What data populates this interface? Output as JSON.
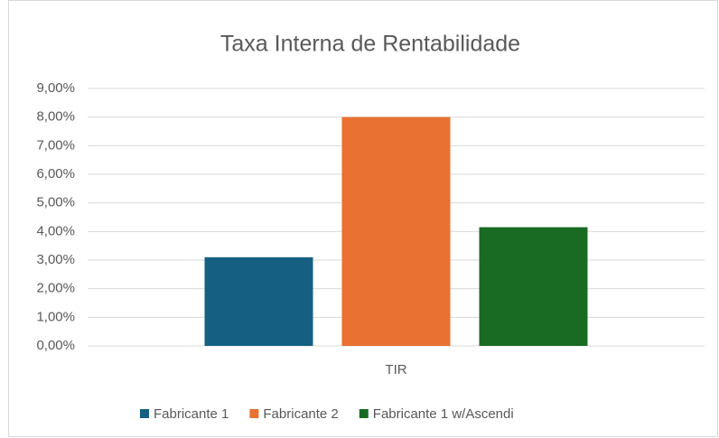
{
  "chart_data": {
    "type": "bar",
    "title": "Taxa Interna de Rentabilidade",
    "categories": [
      "TIR"
    ],
    "series": [
      {
        "name": "Fabricante 1",
        "color": "#156082",
        "values": [
          3.1
        ]
      },
      {
        "name": "Fabricante 2",
        "color": "#e97132",
        "values": [
          8.0
        ]
      },
      {
        "name": "Fabricante 1 w/Ascendi",
        "color": "#196b24",
        "values": [
          4.15
        ]
      }
    ],
    "ylim": [
      0,
      9
    ],
    "yticks": [
      {
        "value": 0,
        "label": "0,00%"
      },
      {
        "value": 1,
        "label": "1,00%"
      },
      {
        "value": 2,
        "label": "2,00%"
      },
      {
        "value": 3,
        "label": "3,00%"
      },
      {
        "value": 4,
        "label": "4,00%"
      },
      {
        "value": 5,
        "label": "5,00%"
      },
      {
        "value": 6,
        "label": "6,00%"
      },
      {
        "value": 7,
        "label": "7,00%"
      },
      {
        "value": 8,
        "label": "8,00%"
      },
      {
        "value": 9,
        "label": "9,00%"
      }
    ],
    "grid": true,
    "legend": "bottom"
  }
}
